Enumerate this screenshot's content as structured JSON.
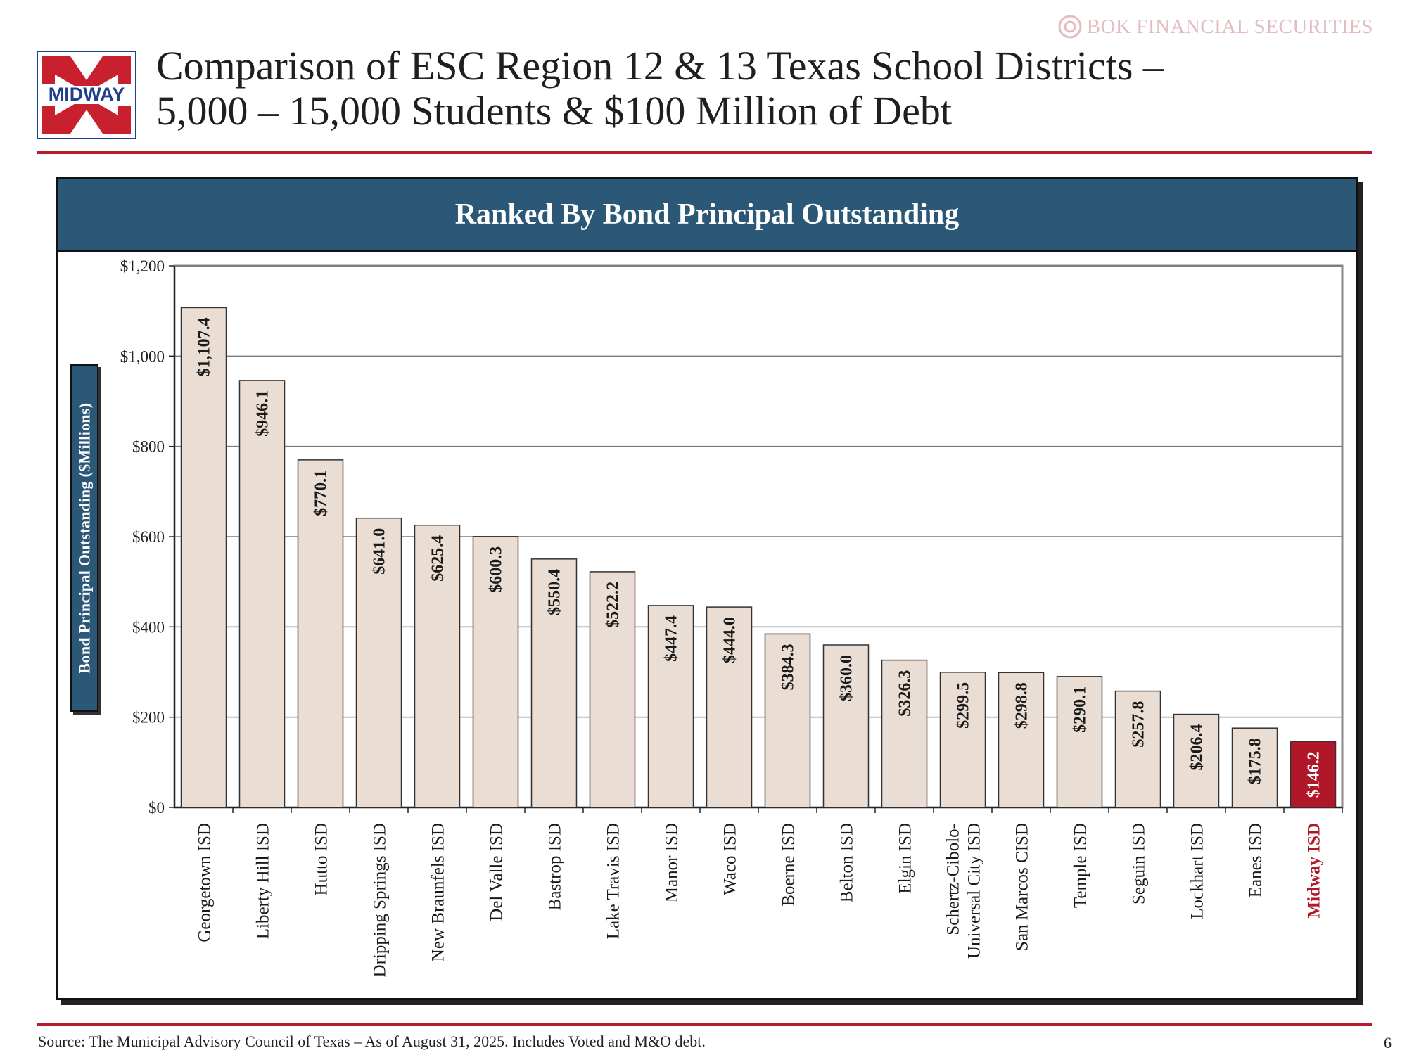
{
  "header": {
    "logo_text": "MIDWAY",
    "title_line1": "Comparison of ESC Region 12 & 13 Texas School Districts –",
    "title_line2": "5,000 – 15,000 Students & $100 Million of Debt",
    "brand_text": "BOK FINANCIAL SECURITIES"
  },
  "colors": {
    "accent_red": "#b71c2c",
    "panel_blue": "#2c5877",
    "bar_fill": "#eaddd4",
    "highlight_bar": "#b0182a"
  },
  "chart_data": {
    "type": "bar",
    "title": "Ranked By Bond Principal Outstanding",
    "ylabel": "Bond Principal Outstanding ($Millions)",
    "xlabel": "",
    "ylim": [
      0,
      1200
    ],
    "yticks": [
      0,
      200,
      400,
      600,
      800,
      1000,
      1200
    ],
    "ytick_labels": [
      "$0",
      "$200",
      "$400",
      "$600",
      "$800",
      "$1,000",
      "$1,200"
    ],
    "grid": true,
    "highlight_category": "Midway ISD",
    "categories": [
      "Georgetown ISD",
      "Liberty Hill ISD",
      "Hutto ISD",
      "Dripping Springs ISD",
      "New Braunfels ISD",
      "Del Valle ISD",
      "Bastrop ISD",
      "Lake Travis ISD",
      "Manor ISD",
      "Waco ISD",
      "Boerne ISD",
      "Belton ISD",
      "Elgin ISD",
      "Schertz-Cibolo-Universal City ISD",
      "San Marcos CISD",
      "Temple ISD",
      "Seguin ISD",
      "Lockhart ISD",
      "Eanes ISD",
      "Midway ISD"
    ],
    "category_lines": [
      [
        "Georgetown ISD"
      ],
      [
        "Liberty Hill ISD"
      ],
      [
        "Hutto ISD"
      ],
      [
        "Dripping Springs ISD"
      ],
      [
        "New Braunfels ISD"
      ],
      [
        "Del Valle ISD"
      ],
      [
        "Bastrop ISD"
      ],
      [
        "Lake Travis ISD"
      ],
      [
        "Manor ISD"
      ],
      [
        "Waco ISD"
      ],
      [
        "Boerne ISD"
      ],
      [
        "Belton ISD"
      ],
      [
        "Elgin ISD"
      ],
      [
        "Schertz-Cibolo-",
        "Universal City ISD"
      ],
      [
        "San Marcos CISD"
      ],
      [
        "Temple ISD"
      ],
      [
        "Seguin ISD"
      ],
      [
        "Lockhart ISD"
      ],
      [
        "Eanes ISD"
      ],
      [
        "Midway ISD"
      ]
    ],
    "values": [
      1107.4,
      946.1,
      770.1,
      641.0,
      625.4,
      600.3,
      550.4,
      522.2,
      447.4,
      444.0,
      384.3,
      360.0,
      326.3,
      299.5,
      298.8,
      290.1,
      257.8,
      206.4,
      175.8,
      146.2
    ],
    "value_labels": [
      "$1,107.4",
      "$946.1",
      "$770.1",
      "$641.0",
      "$625.4",
      "$600.3",
      "$550.4",
      "$522.2",
      "$447.4",
      "$444.0",
      "$384.3",
      "$360.0",
      "$326.3",
      "$299.5",
      "$298.8",
      "$290.1",
      "$257.8",
      "$206.4",
      "$175.8",
      "$146.2"
    ]
  },
  "footer": {
    "source": "Source: The Municipal Advisory Council of Texas – As of August 31, 2025. Includes Voted and M&O debt.",
    "page_number": "6"
  }
}
